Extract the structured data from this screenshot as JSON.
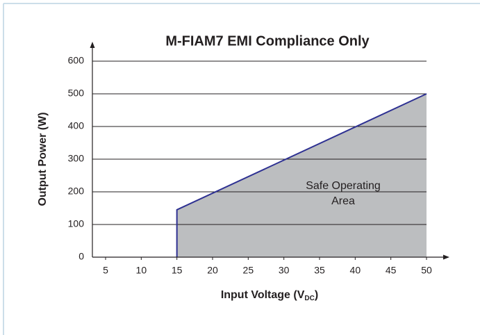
{
  "chart_data": {
    "type": "area",
    "title": "M-FIAM7 EMI Compliance Only",
    "xlabel_parts": [
      "Input Voltage (V",
      "DC",
      ")"
    ],
    "ylabel": "Output Power (W)",
    "annotation": [
      "Safe Operating",
      "Area"
    ],
    "x": [
      15,
      15,
      50
    ],
    "series": [
      {
        "color": "#2e3192",
        "fill": "#bcbec0",
        "values": [
          0,
          145,
          500
        ]
      }
    ],
    "xlim": [
      3.15,
      50
    ],
    "xticks": [
      5,
      10,
      15,
      20,
      25,
      30,
      35,
      40,
      45,
      50
    ],
    "ylim": [
      0,
      600
    ],
    "yticks": [
      0,
      100,
      200,
      300,
      400,
      500,
      600
    ],
    "grid": true
  }
}
